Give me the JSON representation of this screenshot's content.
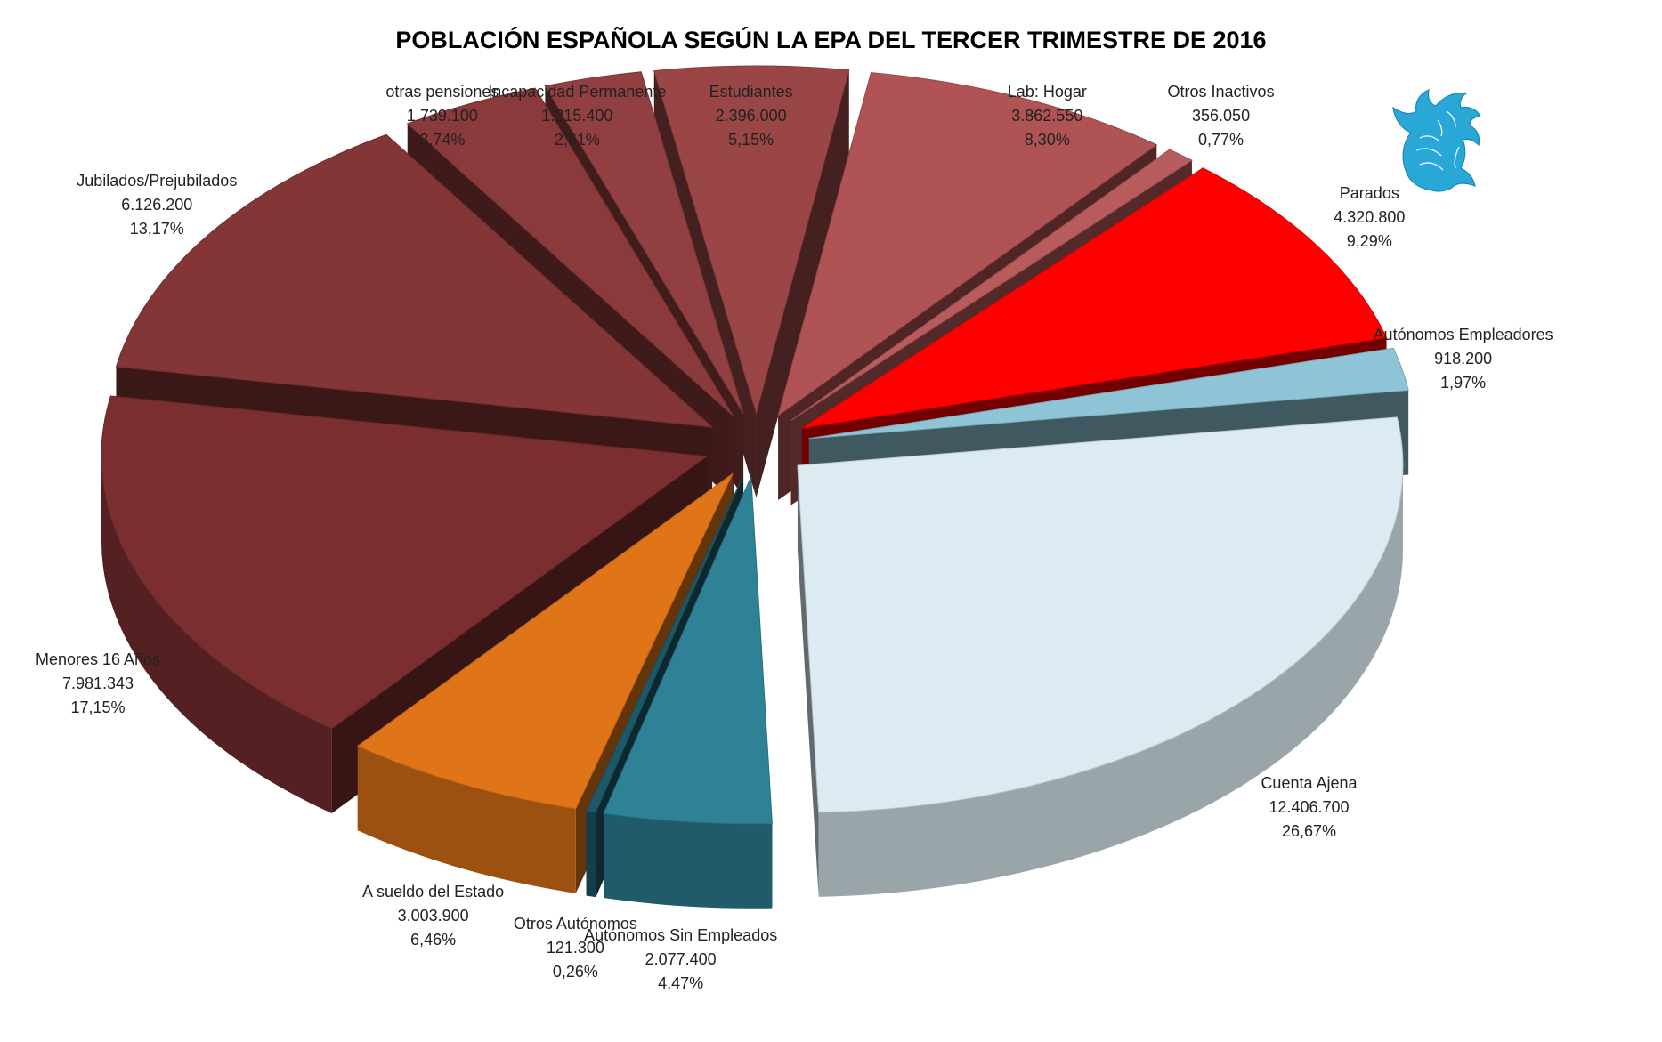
{
  "chart_data": {
    "type": "pie",
    "title": "POBLACIÓN ESPAÑOLA SEGÚN LA EPA DEL TERCER TRIMESTRE DE 2016",
    "three_d": true,
    "exploded": true,
    "slices": [
      {
        "label": "Cuenta Ajena",
        "value_text": "12.406.700",
        "percent_text": "26,67%",
        "value": 12406700,
        "percent": 26.67,
        "color": "#dcebf2"
      },
      {
        "label": "Autónomos Sin Empleados",
        "value_text": "2.077.400",
        "percent_text": "4,47%",
        "value": 2077400,
        "percent": 4.47,
        "color": "#2f8196"
      },
      {
        "label": "Otros Autónomos",
        "value_text": "121.300",
        "percent_text": "0,26%",
        "value": 121300,
        "percent": 0.26,
        "color": "#1d5868"
      },
      {
        "label": "A sueldo del Estado",
        "value_text": "3.003.900",
        "percent_text": "6,46%",
        "value": 3003900,
        "percent": 6.46,
        "color": "#df7418"
      },
      {
        "label": "Menores 16 Años",
        "value_text": "7.981.343",
        "percent_text": "17,15%",
        "value": 7981343,
        "percent": 17.15,
        "color": "#7a2e2f"
      },
      {
        "label": "Jubilados/Prejubilados",
        "value_text": "6.126.200",
        "percent_text": "13,17%",
        "value": 6126200,
        "percent": 13.17,
        "color": "#843536"
      },
      {
        "label": "otras pensiones",
        "value_text": "1.739.100",
        "percent_text": "3,74%",
        "value": 1739100,
        "percent": 3.74,
        "color": "#8b3a3b"
      },
      {
        "label": "Incapacidad Permanente",
        "value_text": "1.215.400",
        "percent_text": "2,61%",
        "value": 1215400,
        "percent": 2.61,
        "color": "#913f40"
      },
      {
        "label": "Estudiantes",
        "value_text": "2.396.000",
        "percent_text": "5,15%",
        "value": 2396000,
        "percent": 5.15,
        "color": "#9a4647"
      },
      {
        "label": "Lab: Hogar",
        "value_text": "3.862.550",
        "percent_text": "8,30%",
        "value": 3862550,
        "percent": 8.3,
        "color": "#b05354"
      },
      {
        "label": "Otros Inactivos",
        "value_text": "356.050",
        "percent_text": "0,77%",
        "value": 356050,
        "percent": 0.77,
        "color": "#b85b5c"
      },
      {
        "label": "Parados",
        "value_text": "4.320.800",
        "percent_text": "9,29%",
        "value": 4320800,
        "percent": 9.29,
        "color": "#ff0000"
      },
      {
        "label": "Autónomos Empleadores",
        "value_text": "918.200",
        "percent_text": "1,97%",
        "value": 918200,
        "percent": 1.97,
        "color": "#8ec4d5"
      }
    ]
  },
  "logo": {
    "name": "griffin-logo-icon",
    "color": "#29a8d8"
  }
}
